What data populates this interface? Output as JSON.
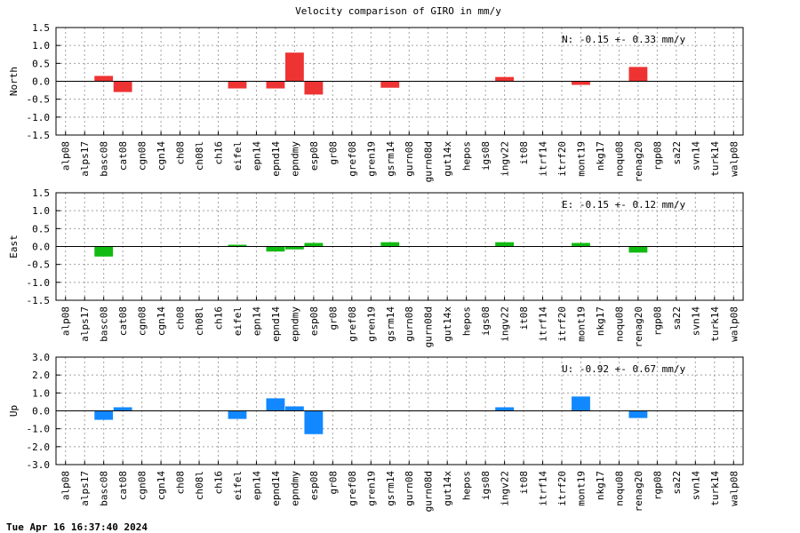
{
  "chart_data": {
    "type": "bar",
    "title": "Velocity comparison of GIRO in mm/y",
    "footer": "Tue Apr 16 16:37:40 2024",
    "categories": [
      "alp08",
      "alps17",
      "basc08",
      "cat08",
      "cgn08",
      "cgn14",
      "ch08",
      "ch08l",
      "ch16",
      "eifel",
      "epn14",
      "epnd14",
      "epndmy",
      "esp08",
      "gr08",
      "gref08",
      "gren19",
      "gsrm14",
      "gurn08",
      "gurn08d",
      "gut14x",
      "hepos",
      "igs08",
      "ingv22",
      "it08",
      "itrf14",
      "itrf20",
      "mont19",
      "nkg17",
      "noqu08",
      "renag20",
      "rgp08",
      "sa22",
      "svn14",
      "turk14",
      "walp08"
    ],
    "grid": true,
    "panels": [
      {
        "ylabel": "North",
        "color": "#ee3333",
        "ylim": [
          -1.5,
          1.5
        ],
        "yticks": [
          "1.5",
          "1.0",
          "0.5",
          "0.0",
          "-0.5",
          "-1.0",
          "-1.5"
        ],
        "stat_text": "N:  -0.15 +-  0.33 mm/y",
        "values": [
          null,
          null,
          0.15,
          -0.3,
          null,
          null,
          null,
          null,
          null,
          -0.2,
          null,
          -0.2,
          0.8,
          -0.37,
          null,
          null,
          null,
          -0.18,
          null,
          null,
          null,
          null,
          null,
          0.12,
          null,
          null,
          null,
          -0.1,
          null,
          null,
          0.4,
          null,
          null,
          null,
          null,
          null
        ]
      },
      {
        "ylabel": "East",
        "color": "#11bb11",
        "ylim": [
          -1.5,
          1.5
        ],
        "yticks": [
          "1.5",
          "1.0",
          "0.5",
          "0.0",
          "-0.5",
          "-1.0",
          "-1.5"
        ],
        "stat_text": "E:  -0.15 +-  0.12 mm/y",
        "values": [
          null,
          null,
          -0.28,
          null,
          null,
          null,
          null,
          null,
          null,
          0.05,
          null,
          -0.14,
          -0.08,
          0.1,
          null,
          null,
          null,
          0.12,
          null,
          null,
          null,
          null,
          null,
          0.12,
          null,
          null,
          null,
          0.1,
          null,
          null,
          -0.17,
          null,
          null,
          null,
          null,
          null
        ]
      },
      {
        "ylabel": "Up",
        "color": "#1188ff",
        "ylim": [
          -3.0,
          3.0
        ],
        "yticks": [
          "3.0",
          "2.0",
          "1.0",
          "0.0",
          "-1.0",
          "-2.0",
          "-3.0"
        ],
        "stat_text": "U:  -0.92 +-  0.67 mm/y",
        "values": [
          null,
          null,
          -0.5,
          0.2,
          null,
          null,
          null,
          null,
          null,
          -0.45,
          null,
          0.7,
          0.25,
          -1.3,
          null,
          null,
          null,
          null,
          null,
          null,
          null,
          null,
          null,
          0.2,
          null,
          null,
          null,
          0.8,
          null,
          null,
          -0.4,
          null,
          null,
          null,
          null,
          null
        ]
      }
    ]
  }
}
